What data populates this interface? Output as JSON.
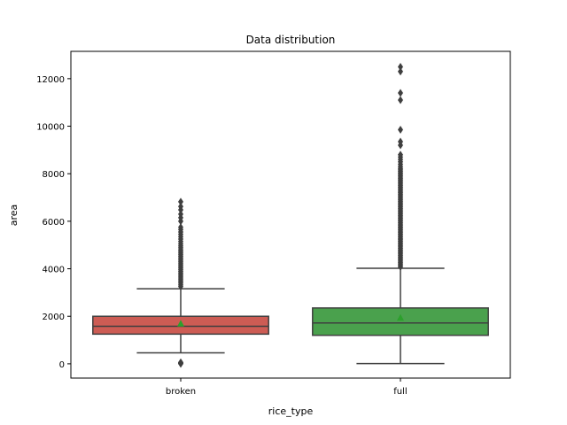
{
  "chart_data": {
    "type": "boxplot",
    "title": "Data distribution",
    "xlabel": "rice_type",
    "ylabel": "area",
    "ylim": [
      -600,
      13150
    ],
    "yticks": [
      0,
      2000,
      4000,
      6000,
      8000,
      10000,
      12000
    ],
    "categories": [
      "broken",
      "full"
    ],
    "boxes": [
      {
        "name": "broken",
        "color": "#cd5c54",
        "whisker_low": 460,
        "q1": 1250,
        "median": 1580,
        "q3": 2000,
        "whisker_high": 3160,
        "mean": 1700,
        "outliers": [
          0,
          15,
          30,
          45,
          60,
          3250,
          3320,
          3400,
          3470,
          3540,
          3610,
          3680,
          3750,
          3820,
          3890,
          3960,
          4030,
          4100,
          4170,
          4240,
          4310,
          4380,
          4450,
          4520,
          4590,
          4660,
          4730,
          4800,
          4880,
          4960,
          5050,
          5150,
          5250,
          5350,
          5450,
          5550,
          5650,
          5750,
          6000,
          6150,
          6300,
          6480,
          6620,
          6820
        ]
      },
      {
        "name": "full",
        "color": "#4aa14d",
        "whisker_low": 10,
        "q1": 1200,
        "median": 1720,
        "q3": 2350,
        "whisker_high": 4020,
        "mean": 1950,
        "outliers": [
          4080,
          4140,
          4200,
          4260,
          4320,
          4380,
          4440,
          4500,
          4560,
          4620,
          4680,
          4740,
          4800,
          4860,
          4920,
          4980,
          5040,
          5100,
          5160,
          5220,
          5280,
          5340,
          5400,
          5460,
          5520,
          5580,
          5640,
          5700,
          5760,
          5820,
          5880,
          5940,
          6000,
          6060,
          6120,
          6180,
          6240,
          6300,
          6360,
          6420,
          6480,
          6540,
          6600,
          6660,
          6720,
          6780,
          6840,
          6900,
          6960,
          7020,
          7080,
          7140,
          7200,
          7260,
          7320,
          7380,
          7440,
          7500,
          7560,
          7620,
          7680,
          7740,
          7800,
          7860,
          7920,
          7980,
          8040,
          8100,
          8160,
          8220,
          8300,
          8400,
          8500,
          8600,
          8700,
          8800,
          9200,
          9350,
          9850,
          11100,
          11400,
          12300,
          12500
        ]
      }
    ]
  }
}
